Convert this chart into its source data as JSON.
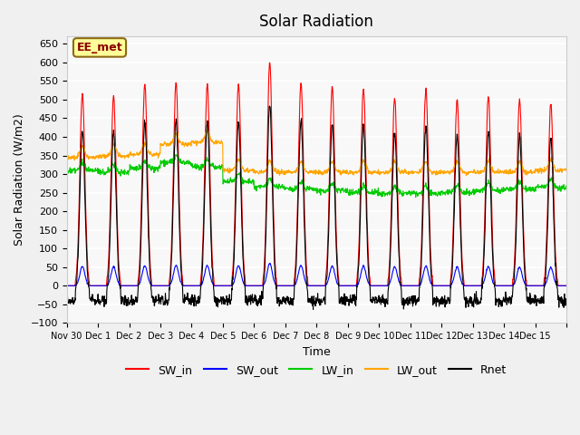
{
  "title": "Solar Radiation",
  "ylabel": "Solar Radiation (W/m2)",
  "xlabel": "Time",
  "ylim": [
    -100,
    670
  ],
  "yticks": [
    -100,
    -50,
    0,
    50,
    100,
    150,
    200,
    250,
    300,
    350,
    400,
    450,
    500,
    550,
    600,
    650
  ],
  "xtick_positions": [
    0,
    1,
    2,
    3,
    4,
    5,
    6,
    7,
    8,
    9,
    10,
    11,
    12,
    13,
    14,
    15,
    16
  ],
  "xtick_labels": [
    "Nov 30",
    "Dec 1",
    "Dec 2",
    "Dec 3",
    "Dec 4",
    "Dec 5",
    "Dec 6",
    "Dec 7",
    "Dec 8",
    "Dec 9",
    "Dec 10",
    "Dec 11",
    "Dec 12",
    "Dec 13",
    "Dec 14",
    "Dec 15",
    ""
  ],
  "colors": {
    "SW_in": "#ff0000",
    "SW_out": "#0000ff",
    "LW_in": "#00cc00",
    "LW_out": "#ffa500",
    "Rnet": "#000000"
  },
  "annotation_text": "EE_met",
  "annotation_box_color": "#ffff99",
  "annotation_box_edge": "#8b6914",
  "n_days": 16,
  "background_color": "#f0f0f0",
  "plot_bg_color": "#f8f8f8"
}
